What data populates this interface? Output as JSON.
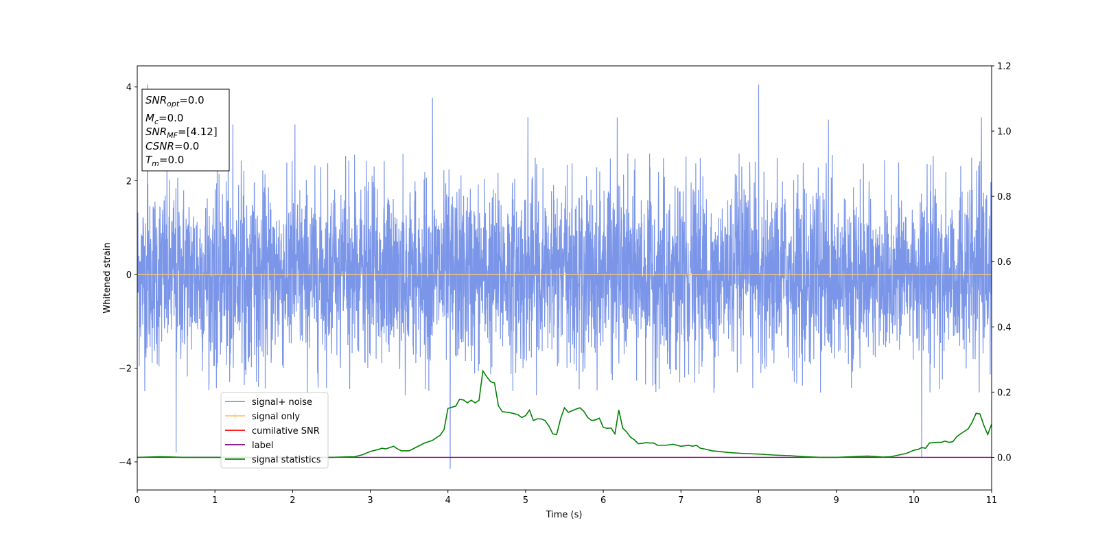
{
  "chart_data": {
    "type": "line",
    "xlabel": "Time (s)",
    "ylabel": "Whitened strain",
    "xlim": [
      0,
      11
    ],
    "ylim": [
      -4.6,
      4.45
    ],
    "y2lim": [
      -0.1,
      1.2
    ],
    "xticks": [
      "0",
      "1",
      "2",
      "3",
      "4",
      "5",
      "6",
      "7",
      "8",
      "9",
      "10",
      "11"
    ],
    "yticks": [
      "4",
      "2",
      "0",
      "−2",
      "−4"
    ],
    "y2ticks": [
      "1.2",
      "1.0",
      "0.8",
      "0.6",
      "0.4",
      "0.2",
      "0.0"
    ],
    "legend_position": "lower-left",
    "legend": [
      {
        "label": "signal+ noise",
        "color": "#7b96e8"
      },
      {
        "label": "signal only",
        "color": "#f5c77a"
      },
      {
        "label": "cumilative SNR",
        "color": "#ff0000"
      },
      {
        "label": "label",
        "color": "#800080"
      },
      {
        "label": "signal statistics",
        "color": "#008000"
      }
    ],
    "annotation": [
      {
        "name": "SNR",
        "sub": "opt",
        "value": "=0.0"
      },
      {
        "name": "M",
        "sub": "c",
        "value": "=0.0"
      },
      {
        "name": "SNR",
        "sub": "MF",
        "value": "=[4.12]"
      },
      {
        "name": "CSNR",
        "sub": "",
        "value": "=0.0"
      },
      {
        "name": "T",
        "sub": "m",
        "value": "=0.0"
      }
    ],
    "series": [
      {
        "name": "signal+ noise",
        "axis": "left",
        "color": "#7b96e8",
        "kind": "noise",
        "envelope": 2.6,
        "peaks": [
          {
            "x": 0.13,
            "y": 4.05
          },
          {
            "x": 0.5,
            "y": -3.8
          },
          {
            "x": 1.23,
            "y": 3.2
          },
          {
            "x": 2.03,
            "y": 3.2
          },
          {
            "x": 3.8,
            "y": 3.77
          },
          {
            "x": 4.03,
            "y": -4.15
          },
          {
            "x": 5.03,
            "y": 3.35
          },
          {
            "x": 6.18,
            "y": 3.35
          },
          {
            "x": 8.0,
            "y": 4.05
          },
          {
            "x": 8.9,
            "y": 3.3
          },
          {
            "x": 10.1,
            "y": -3.9
          },
          {
            "x": 10.87,
            "y": 3.35
          }
        ]
      },
      {
        "name": "signal only",
        "axis": "left",
        "color": "#f5c77a",
        "x": [
          0,
          11
        ],
        "y": [
          0,
          0
        ]
      },
      {
        "name": "label",
        "axis": "right",
        "color": "#800080",
        "x": [
          0,
          11
        ],
        "y": [
          0,
          0
        ]
      },
      {
        "name": "signal statistics",
        "axis": "right",
        "color": "#008000",
        "x": [
          0,
          0.3,
          0.6,
          1.0,
          1.5,
          2.0,
          2.5,
          2.8,
          2.9,
          3.0,
          3.1,
          3.15,
          3.2,
          3.25,
          3.3,
          3.35,
          3.4,
          3.5,
          3.6,
          3.7,
          3.8,
          3.9,
          3.95,
          4.0,
          4.1,
          4.15,
          4.2,
          4.25,
          4.3,
          4.35,
          4.4,
          4.45,
          4.5,
          4.55,
          4.6,
          4.65,
          4.7,
          4.8,
          4.9,
          4.95,
          5.0,
          5.05,
          5.1,
          5.15,
          5.2,
          5.25,
          5.3,
          5.35,
          5.4,
          5.45,
          5.5,
          5.55,
          5.6,
          5.65,
          5.7,
          5.75,
          5.8,
          5.85,
          5.9,
          5.95,
          6.0,
          6.05,
          6.1,
          6.15,
          6.2,
          6.25,
          6.3,
          6.35,
          6.4,
          6.45,
          6.5,
          6.55,
          6.6,
          6.65,
          6.7,
          6.8,
          6.9,
          7.0,
          7.1,
          7.15,
          7.2,
          7.25,
          7.3,
          7.4,
          7.5,
          7.6,
          7.8,
          8.0,
          8.2,
          8.4,
          8.6,
          8.8,
          9.0,
          9.2,
          9.4,
          9.6,
          9.7,
          9.8,
          9.9,
          10.0,
          10.05,
          10.1,
          10.15,
          10.2,
          10.3,
          10.35,
          10.4,
          10.45,
          10.5,
          10.55,
          10.6,
          10.7,
          10.75,
          10.8,
          10.85,
          10.9,
          10.95,
          11.0
        ],
        "y": [
          0.0,
          0.002,
          0.0,
          0.0,
          0.0,
          0.0,
          0.0,
          0.002,
          0.008,
          0.018,
          0.024,
          0.028,
          0.026,
          0.03,
          0.034,
          0.026,
          0.02,
          0.02,
          0.032,
          0.044,
          0.052,
          0.068,
          0.085,
          0.15,
          0.157,
          0.178,
          0.176,
          0.167,
          0.175,
          0.167,
          0.175,
          0.265,
          0.247,
          0.232,
          0.228,
          0.158,
          0.14,
          0.137,
          0.131,
          0.122,
          0.128,
          0.145,
          0.113,
          0.118,
          0.118,
          0.113,
          0.096,
          0.072,
          0.07,
          0.118,
          0.152,
          0.138,
          0.143,
          0.148,
          0.152,
          0.141,
          0.122,
          0.113,
          0.115,
          0.12,
          0.092,
          0.089,
          0.09,
          0.072,
          0.145,
          0.09,
          0.078,
          0.062,
          0.054,
          0.042,
          0.043,
          0.045,
          0.044,
          0.044,
          0.037,
          0.037,
          0.04,
          0.034,
          0.037,
          0.034,
          0.037,
          0.028,
          0.026,
          0.02,
          0.018,
          0.015,
          0.012,
          0.01,
          0.007,
          0.005,
          0.002,
          0.0,
          0.0,
          0.002,
          0.004,
          0.001,
          0.002,
          0.007,
          0.012,
          0.022,
          0.024,
          0.03,
          0.028,
          0.044,
          0.046,
          0.046,
          0.05,
          0.046,
          0.048,
          0.063,
          0.072,
          0.088,
          0.108,
          0.135,
          0.133,
          0.098,
          0.07,
          0.102
        ]
      }
    ]
  }
}
